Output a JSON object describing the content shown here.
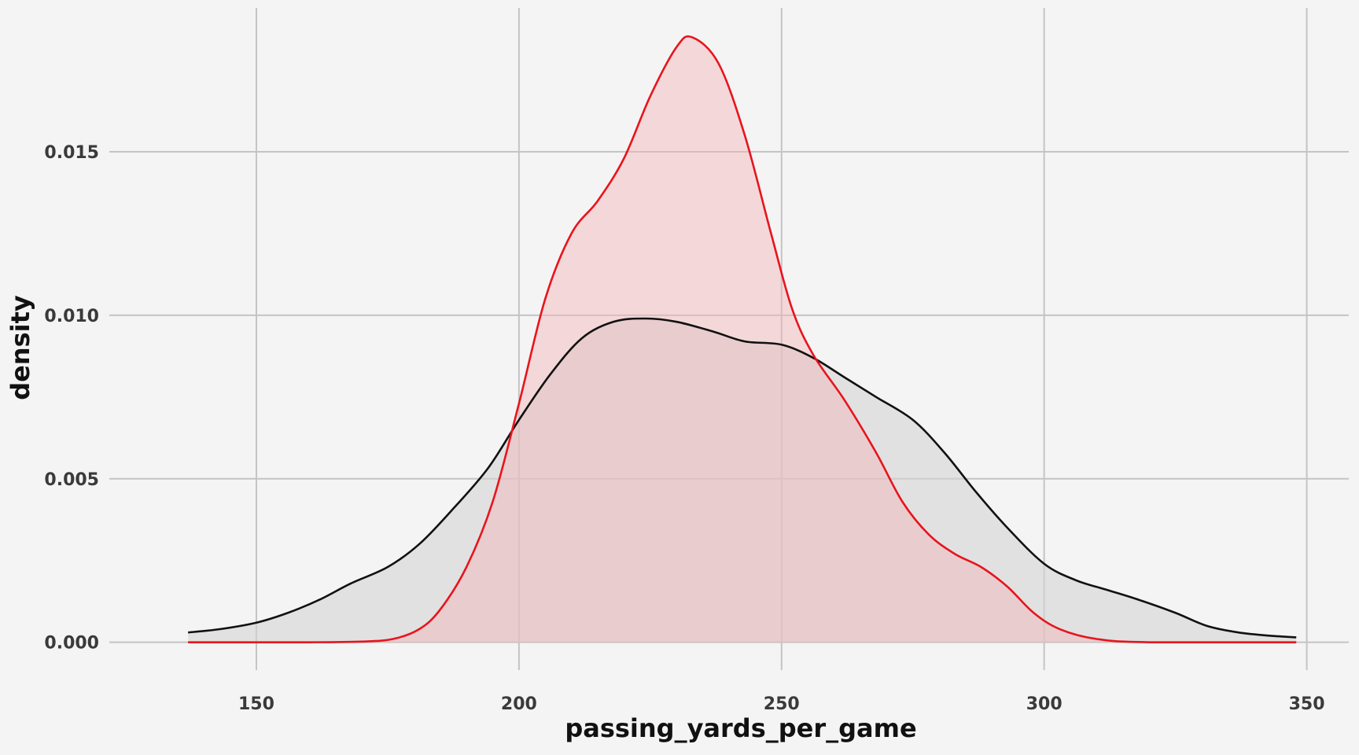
{
  "chart_data": {
    "type": "area",
    "title": "",
    "xlabel": "passing_yards_per_game",
    "ylabel": "density",
    "xlim": [
      122,
      358
    ],
    "ylim": [
      -0.00085,
      0.0194
    ],
    "x_ticks": [
      150,
      200,
      250,
      300,
      350
    ],
    "x_tick_labels": [
      "150",
      "200",
      "250",
      "300",
      "350"
    ],
    "y_ticks": [
      0,
      0.005,
      0.01,
      0.015
    ],
    "y_tick_labels": [
      "0.000",
      "0.005",
      "0.010",
      "0.015"
    ],
    "grid": true,
    "legend": "none",
    "series": [
      {
        "color": "#111111",
        "fill": "#d3d3d3",
        "fill_opacity": 0.6,
        "points": [
          [
            137,
            0.0003
          ],
          [
            143,
            0.0004
          ],
          [
            150,
            0.0006
          ],
          [
            156,
            0.0009
          ],
          [
            162,
            0.0013
          ],
          [
            168,
            0.0018
          ],
          [
            175,
            0.0023
          ],
          [
            181,
            0.003
          ],
          [
            187,
            0.004
          ],
          [
            194,
            0.0053
          ],
          [
            200,
            0.0068
          ],
          [
            206,
            0.0082
          ],
          [
            212,
            0.0093
          ],
          [
            218,
            0.0098
          ],
          [
            224,
            0.0099
          ],
          [
            230,
            0.0098
          ],
          [
            237,
            0.0095
          ],
          [
            243,
            0.0092
          ],
          [
            250,
            0.0091
          ],
          [
            256,
            0.0087
          ],
          [
            262,
            0.0081
          ],
          [
            268,
            0.0075
          ],
          [
            275,
            0.0068
          ],
          [
            281,
            0.0058
          ],
          [
            287,
            0.0046
          ],
          [
            293,
            0.0035
          ],
          [
            300,
            0.0024
          ],
          [
            306,
            0.0019
          ],
          [
            312,
            0.0016
          ],
          [
            318,
            0.0013
          ],
          [
            325,
            0.0009
          ],
          [
            331,
            0.0005
          ],
          [
            337,
            0.0003
          ],
          [
            343,
            0.0002
          ],
          [
            348,
            0.00015
          ]
        ]
      },
      {
        "color": "#e8141c",
        "fill": "#f4b3b8",
        "fill_opacity": 0.45,
        "points": [
          [
            137,
            0.0
          ],
          [
            160,
            0.0
          ],
          [
            170,
            2e-05
          ],
          [
            176,
            0.0001
          ],
          [
            181,
            0.0004
          ],
          [
            185,
            0.001
          ],
          [
            190,
            0.0023
          ],
          [
            195,
            0.0043
          ],
          [
            200,
            0.0073
          ],
          [
            205,
            0.0105
          ],
          [
            210,
            0.0125
          ],
          [
            215,
            0.0135
          ],
          [
            220,
            0.0148
          ],
          [
            225,
            0.0167
          ],
          [
            230,
            0.0182
          ],
          [
            233,
            0.0185
          ],
          [
            238,
            0.0177
          ],
          [
            243,
            0.0155
          ],
          [
            248,
            0.0125
          ],
          [
            252,
            0.0102
          ],
          [
            256,
            0.0088
          ],
          [
            262,
            0.0074
          ],
          [
            268,
            0.0058
          ],
          [
            273,
            0.0043
          ],
          [
            278,
            0.0033
          ],
          [
            283,
            0.0027
          ],
          [
            288,
            0.0023
          ],
          [
            293,
            0.0017
          ],
          [
            298,
            0.0009
          ],
          [
            303,
            0.0004
          ],
          [
            310,
            0.0001
          ],
          [
            320,
            0.0
          ],
          [
            348,
            0.0
          ]
        ]
      }
    ]
  }
}
